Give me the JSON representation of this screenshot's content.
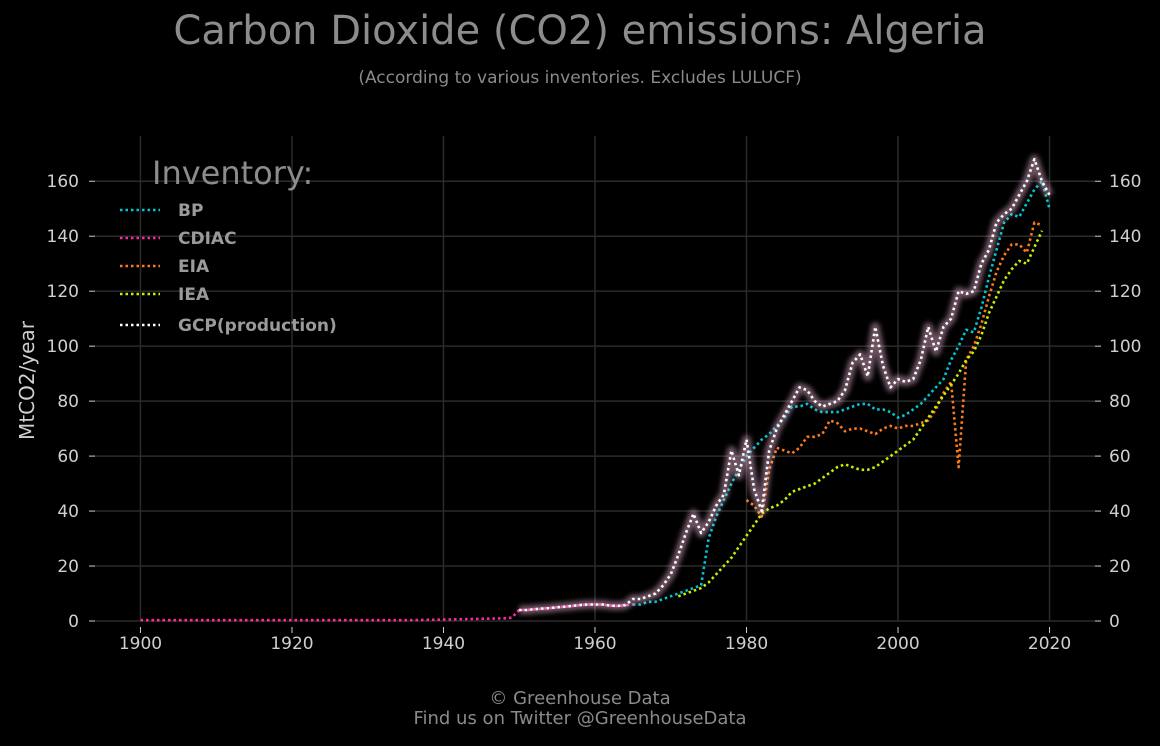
{
  "title": "Carbon Dioxide (CO2) emissions: Algeria",
  "subtitle": "(According to various inventories. Excludes LULUCF)",
  "footer": {
    "line1": "© Greenhouse Data",
    "line2": "Find us on Twitter @GreenhouseData"
  },
  "colors": {
    "background": "#000000",
    "grid": "#2b2b2b",
    "text": "#cfcfcf"
  },
  "chart_data": {
    "type": "line",
    "title": "Carbon Dioxide (CO2) emissions: Algeria",
    "subtitle": "(According to various inventories. Excludes LULUCF)",
    "xlabel": "",
    "ylabel": "MtCO2/year",
    "xlim": [
      1894,
      2026
    ],
    "ylim": [
      0,
      175
    ],
    "xticks": [
      1900,
      1920,
      1940,
      1960,
      1980,
      2000,
      2020
    ],
    "yticks": [
      0,
      20,
      40,
      60,
      80,
      100,
      120,
      140,
      160
    ],
    "grid": true,
    "legend": {
      "title": "Inventory:",
      "position": "top-left"
    },
    "series": [
      {
        "name": "BP",
        "color": "#00c8d2",
        "x": [
          1965,
          1966,
          1967,
          1968,
          1969,
          1970,
          1971,
          1972,
          1973,
          1974,
          1975,
          1976,
          1977,
          1978,
          1979,
          1980,
          1981,
          1982,
          1983,
          1984,
          1985,
          1986,
          1987,
          1988,
          1989,
          1990,
          1991,
          1992,
          1993,
          1994,
          1995,
          1996,
          1997,
          1998,
          1999,
          2000,
          2001,
          2002,
          2003,
          2004,
          2005,
          2006,
          2007,
          2008,
          2009,
          2010,
          2011,
          2012,
          2013,
          2014,
          2015,
          2016,
          2017,
          2018,
          2019,
          2020
        ],
        "y": [
          6,
          6,
          7,
          7,
          8,
          9,
          10,
          11,
          12,
          13,
          30,
          38,
          44,
          50,
          55,
          60,
          63,
          66,
          68,
          71,
          74,
          78,
          78,
          79,
          77,
          76,
          76,
          76,
          77,
          78,
          79,
          79,
          77,
          77,
          76,
          74,
          75,
          77,
          79,
          82,
          85,
          88,
          95,
          100,
          106,
          105,
          114,
          125,
          135,
          145,
          148,
          147,
          152,
          157,
          160,
          150
        ]
      },
      {
        "name": "CDIAC",
        "color": "#ff2b9e",
        "x": [
          1900,
          1905,
          1910,
          1915,
          1920,
          1925,
          1930,
          1935,
          1940,
          1945,
          1948,
          1949,
          1950,
          1951,
          1952,
          1953,
          1954,
          1955,
          1956,
          1957,
          1958,
          1959,
          1960,
          1961,
          1962,
          1963,
          1964,
          1965
        ],
        "y": [
          0.3,
          0.3,
          0.3,
          0.3,
          0.3,
          0.3,
          0.3,
          0.3,
          0.5,
          0.8,
          1,
          1.2,
          4,
          4,
          4.3,
          4.5,
          4.7,
          5,
          5.2,
          5.5,
          5.8,
          6,
          6,
          6,
          5.6,
          5.5,
          5.8,
          6
        ]
      },
      {
        "name": "EIA",
        "color": "#ff7b1a",
        "x": [
          1980,
          1981,
          1982,
          1983,
          1984,
          1985,
          1986,
          1987,
          1988,
          1989,
          1990,
          1991,
          1992,
          1993,
          1994,
          1995,
          1996,
          1997,
          1998,
          1999,
          2000,
          2001,
          2002,
          2003,
          2004,
          2005,
          2006,
          2007,
          2008,
          2009,
          2010,
          2011,
          2012,
          2013,
          2014,
          2015,
          2016,
          2017,
          2018,
          2019
        ],
        "y": [
          44,
          42,
          38,
          55,
          63,
          62,
          61,
          63,
          67,
          67,
          68,
          73,
          72,
          69,
          70,
          70,
          69,
          68,
          70,
          71,
          70,
          71,
          71,
          72,
          73,
          77,
          83,
          87,
          56,
          95,
          100,
          108,
          118,
          127,
          133,
          137,
          137,
          134,
          145,
          144
        ]
      },
      {
        "name": "IEA",
        "color": "#c8f000",
        "x": [
          1971,
          1972,
          1973,
          1974,
          1975,
          1976,
          1977,
          1978,
          1979,
          1980,
          1981,
          1982,
          1983,
          1984,
          1985,
          1986,
          1987,
          1988,
          1989,
          1990,
          1991,
          1992,
          1993,
          1994,
          1995,
          1996,
          1997,
          1998,
          1999,
          2000,
          2001,
          2002,
          2003,
          2004,
          2005,
          2006,
          2007,
          2008,
          2009,
          2010,
          2011,
          2012,
          2013,
          2014,
          2015,
          2016,
          2017,
          2018,
          2019
        ],
        "y": [
          9,
          10,
          11,
          12,
          14,
          17,
          20,
          23,
          27,
          31,
          35,
          39,
          41,
          42,
          44,
          47,
          48,
          49,
          50,
          52,
          54,
          56,
          57,
          56,
          55,
          55,
          56,
          58,
          60,
          62,
          64,
          66,
          70,
          74,
          78,
          82,
          86,
          90,
          95,
          98,
          104,
          112,
          118,
          124,
          128,
          131,
          130,
          136,
          142
        ]
      },
      {
        "name": "GCP(production)",
        "color": "#ffffff",
        "x": [
          1950,
          1951,
          1952,
          1953,
          1954,
          1955,
          1956,
          1957,
          1958,
          1959,
          1960,
          1961,
          1962,
          1963,
          1964,
          1965,
          1966,
          1967,
          1968,
          1969,
          1970,
          1971,
          1972,
          1973,
          1974,
          1975,
          1976,
          1977,
          1978,
          1979,
          1980,
          1981,
          1982,
          1983,
          1984,
          1985,
          1986,
          1987,
          1988,
          1989,
          1990,
          1991,
          1992,
          1993,
          1994,
          1995,
          1996,
          1997,
          1998,
          1999,
          2000,
          2001,
          2002,
          2003,
          2004,
          2005,
          2006,
          2007,
          2008,
          2009,
          2010,
          2011,
          2012,
          2013,
          2014,
          2015,
          2016,
          2017,
          2018,
          2019,
          2020
        ],
        "y": [
          4,
          4,
          4.3,
          4.5,
          4.7,
          5,
          5.2,
          5.5,
          5.8,
          6,
          6,
          6,
          5.6,
          5.5,
          5.8,
          8,
          8,
          9,
          10,
          13,
          17,
          24,
          32,
          39,
          32,
          36,
          42,
          46,
          62,
          53,
          66,
          48,
          40,
          62,
          70,
          75,
          80,
          85,
          84,
          80,
          78,
          79,
          80,
          84,
          94,
          97,
          89,
          107,
          93,
          85,
          88,
          87,
          88,
          95,
          107,
          98,
          107,
          110,
          120,
          119,
          120,
          130,
          135,
          145,
          148,
          150,
          155,
          160,
          168,
          160,
          155
        ]
      }
    ]
  }
}
